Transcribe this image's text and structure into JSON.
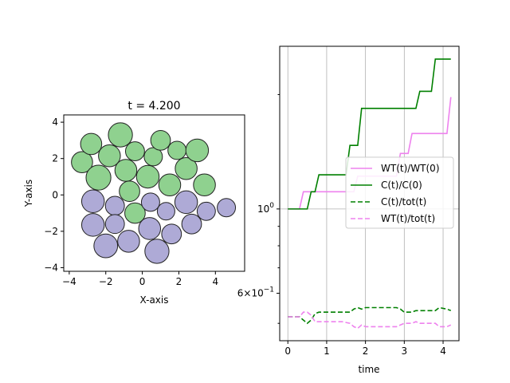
{
  "chart_data": [
    {
      "type": "scatter",
      "title": "t = 4.200",
      "xlabel": "X-axis",
      "ylabel": "Y-axis",
      "xlim": [
        -4.3,
        5.6
      ],
      "ylim": [
        -4.2,
        4.4
      ],
      "xticks": [
        -4,
        -2,
        0,
        2,
        4
      ],
      "yticks": [
        -4,
        -2,
        0,
        2,
        4
      ],
      "grid": false,
      "series": [
        {
          "color": "#8fd18f",
          "points": [
            {
              "x": -3.3,
              "y": 1.8,
              "r": 0.58
            },
            {
              "x": -2.8,
              "y": 2.8,
              "r": 0.58
            },
            {
              "x": -2.4,
              "y": 0.95,
              "r": 0.68
            },
            {
              "x": -1.8,
              "y": 2.15,
              "r": 0.6
            },
            {
              "x": -1.2,
              "y": 3.3,
              "r": 0.66
            },
            {
              "x": -0.9,
              "y": 1.35,
              "r": 0.6
            },
            {
              "x": -0.4,
              "y": 2.4,
              "r": 0.52
            },
            {
              "x": -0.7,
              "y": 0.2,
              "r": 0.56
            },
            {
              "x": -0.4,
              "y": -1.0,
              "r": 0.56
            },
            {
              "x": 0.3,
              "y": 1.0,
              "r": 0.62
            },
            {
              "x": 0.6,
              "y": 2.1,
              "r": 0.5
            },
            {
              "x": 1.0,
              "y": 3.0,
              "r": 0.54
            },
            {
              "x": 1.5,
              "y": 0.55,
              "r": 0.6
            },
            {
              "x": 1.9,
              "y": 2.45,
              "r": 0.5
            },
            {
              "x": 2.4,
              "y": 1.45,
              "r": 0.6
            },
            {
              "x": 3.0,
              "y": 2.45,
              "r": 0.62
            },
            {
              "x": 3.4,
              "y": 0.55,
              "r": 0.6
            }
          ]
        },
        {
          "color": "#aeaad6",
          "points": [
            {
              "x": -2.7,
              "y": -0.35,
              "r": 0.62
            },
            {
              "x": -2.7,
              "y": -1.65,
              "r": 0.62
            },
            {
              "x": -2.0,
              "y": -2.8,
              "r": 0.65
            },
            {
              "x": -1.5,
              "y": -0.6,
              "r": 0.52
            },
            {
              "x": -1.5,
              "y": -1.6,
              "r": 0.52
            },
            {
              "x": -0.75,
              "y": -2.55,
              "r": 0.6
            },
            {
              "x": 0.45,
              "y": -0.4,
              "r": 0.5
            },
            {
              "x": 0.4,
              "y": -1.85,
              "r": 0.6
            },
            {
              "x": 0.8,
              "y": -3.1,
              "r": 0.66
            },
            {
              "x": 1.3,
              "y": -0.9,
              "r": 0.48
            },
            {
              "x": 1.6,
              "y": -2.15,
              "r": 0.54
            },
            {
              "x": 2.4,
              "y": -0.4,
              "r": 0.62
            },
            {
              "x": 2.7,
              "y": -1.6,
              "r": 0.54
            },
            {
              "x": 3.5,
              "y": -0.9,
              "r": 0.5
            },
            {
              "x": 4.6,
              "y": -0.7,
              "r": 0.5
            }
          ]
        }
      ]
    },
    {
      "type": "line",
      "xlabel": "time",
      "ylabel": "",
      "xlim": [
        -0.21,
        4.41
      ],
      "ylim": [
        0.45,
        2.68
      ],
      "yscale": "log",
      "xticks": [
        0,
        1,
        2,
        3,
        4
      ],
      "yticks": [
        {
          "value": 1.0,
          "label": "10^0"
        },
        {
          "value": 0.6,
          "label": "6×10^-1"
        }
      ],
      "grid": true,
      "legend": "center-right",
      "series": [
        {
          "name": "WT(t)/WT(0)",
          "color": "#ee82ee",
          "dash": "solid",
          "x": [
            0,
            0.3,
            0.4,
            1.7,
            1.8,
            2.8,
            2.9,
            3.1,
            3.2,
            4.1,
            4.2
          ],
          "y": [
            1.0,
            1.0,
            1.11,
            1.11,
            1.22,
            1.22,
            1.4,
            1.4,
            1.58,
            1.58,
            1.97
          ]
        },
        {
          "name": "C(t)/C(0)",
          "color": "#008000",
          "dash": "solid",
          "x": [
            0,
            0.5,
            0.6,
            0.7,
            0.8,
            1.5,
            1.6,
            1.8,
            1.9,
            3.3,
            3.4,
            3.7,
            3.8,
            4.2
          ],
          "y": [
            1.0,
            1.0,
            1.11,
            1.11,
            1.23,
            1.23,
            1.47,
            1.47,
            1.84,
            1.84,
            2.04,
            2.04,
            2.48,
            2.48
          ]
        },
        {
          "name": "C(t)/tot(t)",
          "color": "#008000",
          "dash": "dashed",
          "x": [
            0,
            0.3,
            0.4,
            0.5,
            0.6,
            0.7,
            0.8,
            1.6,
            1.7,
            1.8,
            1.9,
            2.0,
            2.8,
            2.9,
            3.0,
            3.2,
            3.3,
            3.4,
            3.8,
            3.9,
            4.1,
            4.2
          ],
          "y": [
            0.52,
            0.52,
            0.51,
            0.5,
            0.51,
            0.53,
            0.535,
            0.535,
            0.545,
            0.55,
            0.545,
            0.55,
            0.55,
            0.545,
            0.535,
            0.535,
            0.54,
            0.54,
            0.54,
            0.55,
            0.545,
            0.54
          ]
        },
        {
          "name": "WT(t)/tot(t)",
          "color": "#ee82ee",
          "dash": "dashed",
          "x": [
            0,
            0.3,
            0.4,
            0.5,
            0.6,
            0.7,
            0.8,
            1.4,
            1.6,
            1.7,
            1.8,
            1.9,
            2.0,
            2.8,
            2.9,
            3.0,
            3.2,
            3.3,
            3.4,
            3.8,
            3.9,
            4.1,
            4.2
          ],
          "y": [
            0.52,
            0.52,
            0.535,
            0.535,
            0.525,
            0.505,
            0.505,
            0.505,
            0.5,
            0.49,
            0.485,
            0.495,
            0.49,
            0.49,
            0.495,
            0.5,
            0.5,
            0.505,
            0.5,
            0.5,
            0.49,
            0.49,
            0.495
          ]
        }
      ]
    }
  ]
}
